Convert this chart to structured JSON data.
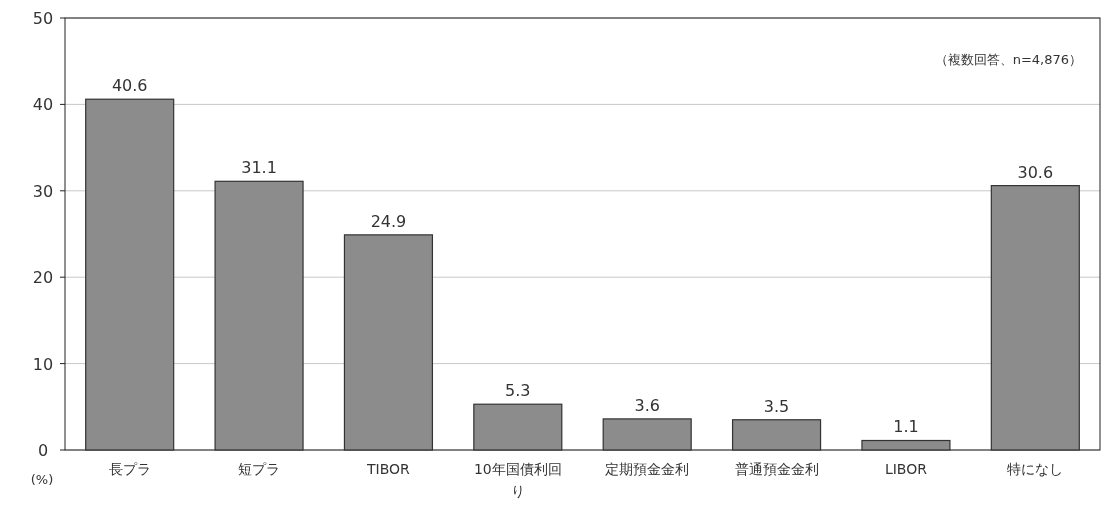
{
  "chart_data": {
    "type": "bar",
    "categories": [
      "長プラ",
      "短プラ",
      "TIBOR",
      "10年国債利回り",
      "定期預金金利",
      "普通預金金利",
      "LIBOR",
      "特になし"
    ],
    "values": [
      40.6,
      31.1,
      24.9,
      5.3,
      3.6,
      3.5,
      1.1,
      30.6
    ],
    "color": "#8c8c8c",
    "ylim": [
      0,
      50
    ],
    "yticks": [
      0,
      10,
      20,
      30,
      40,
      50
    ],
    "ylabel": "(%)",
    "grid": "y",
    "data_labels": true,
    "annotations": [
      "（複数回答、n=4,876）"
    ]
  }
}
